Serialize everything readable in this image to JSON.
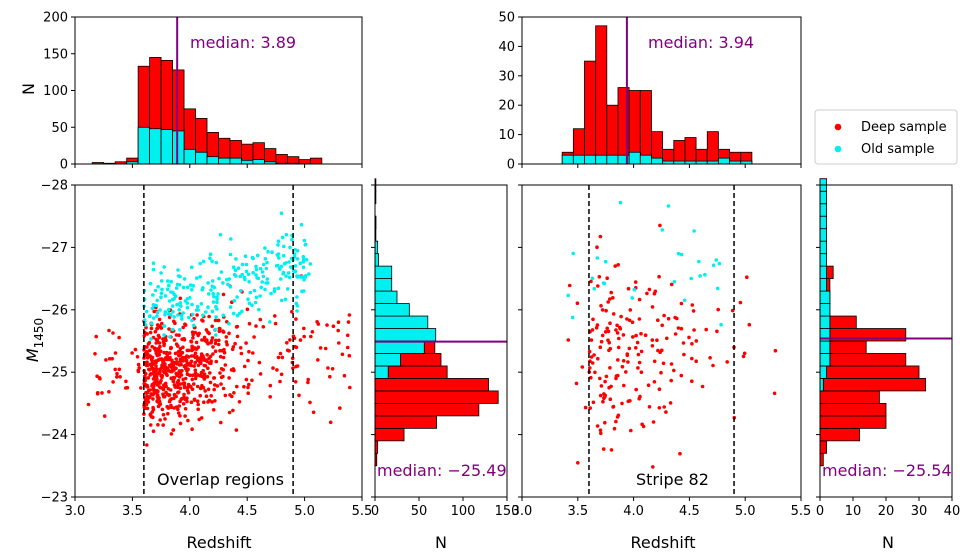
{
  "colors": {
    "deep": "#ff0000",
    "old": "#00f0f0",
    "median": "#800080"
  },
  "legend": {
    "deep": "Deep sample",
    "old": "Old sample"
  },
  "chart_data": [
    {
      "id": "overlap-z-hist",
      "type": "bar",
      "ylabel": "N",
      "xlim": [
        3.0,
        5.5
      ],
      "ylim": [
        0,
        200
      ],
      "yticks": [
        "0",
        "50",
        "100",
        "150",
        "200"
      ],
      "bin_edges": [
        3.15,
        3.25,
        3.35,
        3.45,
        3.55,
        3.65,
        3.75,
        3.85,
        3.95,
        4.05,
        4.15,
        4.25,
        4.35,
        4.45,
        4.55,
        4.65,
        4.75,
        4.85,
        4.95,
        5.05,
        5.15,
        5.25,
        5.35
      ],
      "series": [
        {
          "name": "Deep sample",
          "values": [
            2,
            1,
            3,
            8,
            133,
            145,
            141,
            128,
            75,
            62,
            43,
            35,
            32,
            27,
            29,
            21,
            13,
            10,
            6,
            8,
            0,
            0
          ]
        },
        {
          "name": "Old sample",
          "values": [
            0,
            0,
            0,
            3,
            50,
            48,
            47,
            45,
            20,
            16,
            10,
            8,
            8,
            5,
            6,
            3,
            1,
            1,
            0,
            0,
            0,
            0
          ]
        }
      ],
      "median": {
        "value": 3.89,
        "label": "median: 3.89"
      }
    },
    {
      "id": "overlap-scatter",
      "type": "scatter",
      "xlabel": "Redshift",
      "xlim": [
        3.0,
        5.5
      ],
      "ylim": [
        -28,
        -23
      ],
      "xticks": [
        "3.0",
        "3.5",
        "4.0",
        "4.5",
        "5.0",
        "5.5"
      ],
      "yticks": [
        "−23",
        "−24",
        "−25",
        "−26",
        "−27",
        "−28"
      ],
      "vlines": [
        3.6,
        4.9
      ],
      "annotation": "Overlap regions"
    },
    {
      "id": "overlap-m-hist",
      "type": "bar",
      "xlabel": "N",
      "xlim": [
        0,
        150
      ],
      "xticks": [
        "0",
        "50",
        "100",
        "150"
      ],
      "bin_edges": [
        -23.5,
        -23.7,
        -23.9,
        -24.1,
        -24.3,
        -24.5,
        -24.7,
        -24.9,
        -25.1,
        -25.3,
        -25.5,
        -25.7,
        -25.9,
        -26.1,
        -26.3,
        -26.5,
        -26.7,
        -26.9,
        -27.1,
        -27.3,
        -27.5,
        -27.7,
        -27.9,
        -28.1
      ],
      "series": [
        {
          "name": "Deep sample",
          "values": [
            2,
            3,
            33,
            70,
            118,
            140,
            129,
            82,
            75,
            68,
            40,
            35,
            4,
            4,
            2,
            1,
            2,
            1,
            0,
            1,
            0,
            1,
            1
          ]
        },
        {
          "name": "Old sample",
          "values": [
            0,
            0,
            0,
            0,
            0,
            0,
            0,
            15,
            29,
            56,
            69,
            60,
            39,
            25,
            19,
            19,
            4,
            3,
            1,
            1,
            0,
            0,
            0
          ]
        }
      ],
      "median": {
        "value": -25.49,
        "label": "median: −25.49"
      }
    },
    {
      "id": "stripe82-z-hist",
      "type": "bar",
      "xlim": [
        3.0,
        5.5
      ],
      "ylim": [
        0,
        50
      ],
      "yticks": [
        "0",
        "10",
        "20",
        "30",
        "40",
        "50"
      ],
      "bin_edges": [
        3.36,
        3.46,
        3.56,
        3.66,
        3.76,
        3.86,
        3.96,
        4.06,
        4.16,
        4.26,
        4.36,
        4.46,
        4.56,
        4.66,
        4.76,
        4.86,
        4.96,
        5.06
      ],
      "series": [
        {
          "name": "Deep sample",
          "values": [
            4,
            12,
            35,
            47,
            20,
            26,
            25,
            25,
            11,
            5,
            8,
            9,
            5,
            11,
            5,
            4,
            4
          ]
        },
        {
          "name": "Old sample",
          "values": [
            3,
            3,
            3,
            3,
            3,
            3,
            4,
            3,
            2,
            1,
            1,
            1,
            1,
            1,
            2,
            1,
            1
          ]
        }
      ],
      "median": {
        "value": 3.94,
        "label": "median: 3.94"
      }
    },
    {
      "id": "stripe82-scatter",
      "type": "scatter",
      "xlabel": "Redshift",
      "xlim": [
        3.0,
        5.5
      ],
      "ylim": [
        -28,
        -23
      ],
      "xticks": [
        "3.0",
        "3.5",
        "4.0",
        "4.5",
        "5.0",
        "5.5"
      ],
      "vlines": [
        3.6,
        4.9
      ],
      "annotation": "Stripe 82"
    },
    {
      "id": "stripe82-m-hist",
      "type": "bar",
      "xlabel": "N",
      "xlim": [
        0,
        40
      ],
      "xticks": [
        "0",
        "10",
        "20",
        "30",
        "40"
      ],
      "bin_edges": [
        -23.5,
        -23.7,
        -23.9,
        -24.1,
        -24.3,
        -24.5,
        -24.7,
        -24.9,
        -25.1,
        -25.3,
        -25.5,
        -25.7,
        -25.9,
        -26.1,
        -26.3,
        -26.5,
        -26.7,
        -26.9,
        -27.1,
        -27.3,
        -27.5,
        -27.7,
        -27.9,
        -28.1
      ],
      "series": [
        {
          "name": "Deep sample",
          "values": [
            1,
            2,
            12,
            20,
            20,
            18,
            32,
            30,
            26,
            14,
            26,
            11,
            3,
            3,
            3,
            4,
            2,
            2,
            2,
            2,
            2,
            2,
            2
          ]
        },
        {
          "name": "Old sample",
          "values": [
            0,
            0,
            0,
            0,
            0,
            0,
            1,
            2,
            3,
            3,
            3,
            3,
            3,
            3,
            2,
            2,
            2,
            2,
            2,
            2,
            2,
            2,
            2
          ]
        }
      ],
      "median": {
        "value": -25.54,
        "label": "median: −25.54"
      }
    }
  ]
}
